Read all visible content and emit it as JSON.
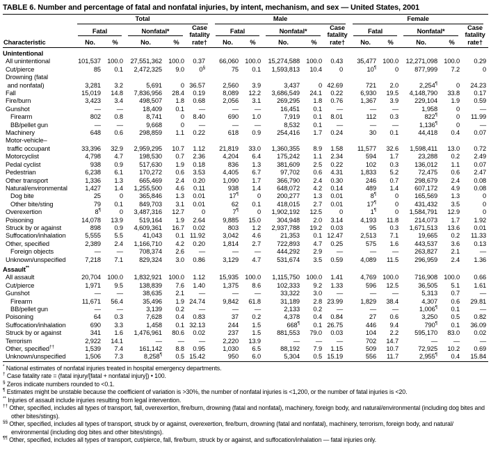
{
  "title": "TABLE 6. Number and percentage of fatal and nonfatal injuries, by intent, mechanism, and sex — United States, 2001",
  "header": {
    "characteristic": "Characteristic",
    "groups": [
      "Total",
      "Male",
      "Female"
    ],
    "fatal": "Fatal",
    "nonfatal": "Nonfatal*",
    "case_fatality": "Case\nfatality\nrate†",
    "no": "No.",
    "pct": "%"
  },
  "sections": [
    {
      "name": "Unintentional",
      "rows": [
        {
          "label": "All unintentional",
          "cells": [
            "101,537",
            "100.0",
            "27,551,362",
            "100.0",
            "0.37",
            "66,060",
            "100.0",
            "15,274,588",
            "100.0",
            "0.43",
            "35,477",
            "100.0",
            "12,271,098",
            "100.0",
            "0.29"
          ]
        },
        {
          "label": "Cut/pierce",
          "cells": [
            "85",
            "0.1",
            "2,472,325",
            "9.0",
            "0§",
            "75",
            "0.1",
            "1,593,813",
            "10.4",
            "0",
            "10¶",
            "0",
            "877,999",
            "7.2",
            "0"
          ]
        },
        {
          "label": "Drowning (fatal\n and nonfatal)",
          "cells": [
            "3,281",
            "3.2",
            "5,691",
            "0",
            "36.57",
            "2,560",
            "3.9",
            "3,437",
            "0",
            "42.69",
            "721",
            "2.0",
            "2,254¶",
            "0",
            "24.23"
          ]
        },
        {
          "label": "Fall",
          "cells": [
            "15,019",
            "14.8",
            "7,836,956",
            "28.4",
            "0.19",
            "8,089",
            "12.2",
            "3,686,549",
            "24.1",
            "0.22",
            "6,930",
            "19.5",
            "4,148,790",
            "33.8",
            "0.17"
          ]
        },
        {
          "label": "Fire/burn",
          "cells": [
            "3,423",
            "3.4",
            "498,507",
            "1.8",
            "0.68",
            "2,056",
            "3.1",
            "269,295",
            "1.8",
            "0.76",
            "1,367",
            "3.9",
            "229,104",
            "1.9",
            "0.59"
          ]
        },
        {
          "label": "Gunshot",
          "cells": [
            "—",
            "—",
            "18,409",
            "0.1",
            "—",
            "—",
            "—",
            "16,451",
            "0.1",
            "—",
            "—",
            "—",
            "1,958",
            "0",
            "—"
          ]
        },
        {
          "label": "Firearm",
          "indent": 2,
          "cells": [
            "802",
            "0.8",
            "8,741",
            "0",
            "8.40",
            "690",
            "1.0",
            "7,919",
            "0.1",
            "8.01",
            "112",
            "0.3",
            "822¶",
            "0",
            "11.99"
          ]
        },
        {
          "label": "BB/pellet gun",
          "indent": 2,
          "cells": [
            "—",
            "—",
            "9,668",
            "0",
            "—",
            "—",
            "—",
            "8,532",
            "0.1",
            "—",
            "—",
            "—",
            "1,136¶",
            "0",
            "—"
          ]
        },
        {
          "label": "Machinery",
          "cells": [
            "648",
            "0.6",
            "298,859",
            "1.1",
            "0.22",
            "618",
            "0.9",
            "254,416",
            "1.7",
            "0.24",
            "30",
            "0.1",
            "44,418",
            "0.4",
            "0.07"
          ]
        },
        {
          "label": "Motor-vehicle–\n traffic occupant",
          "cells": [
            "33,396",
            "32.9",
            "2,959,295",
            "10.7",
            "1.12",
            "21,819",
            "33.0",
            "1,360,355",
            "8.9",
            "1.58",
            "11,577",
            "32.6",
            "1,598,411",
            "13.0",
            "0.72"
          ]
        },
        {
          "label": "Motorcyclist",
          "cells": [
            "4,798",
            "4.7",
            "198,530",
            "0.7",
            "2.36",
            "4,204",
            "6.4",
            "175,242",
            "1.1",
            "2.34",
            "594",
            "1.7",
            "23,288",
            "0.2",
            "2.49"
          ]
        },
        {
          "label": "Pedal cyclist",
          "cells": [
            "938",
            "0.9",
            "517,630",
            "1.9",
            "0.18",
            "836",
            "1.3",
            "381,609",
            "2.5",
            "0.22",
            "102",
            "0.3",
            "136,012",
            "1.1",
            "0.07"
          ]
        },
        {
          "label": "Pedestrian",
          "cells": [
            "6,238",
            "6.1",
            "170,272",
            "0.6",
            "3.53",
            "4,405",
            "6.7",
            "97,702",
            "0.6",
            "4.31",
            "1,833",
            "5.2",
            "72,475",
            "0.6",
            "2.47"
          ]
        },
        {
          "label": "Other transport",
          "cells": [
            "1,336",
            "1.3",
            "665,469",
            "2.4",
            "0.20",
            "1,090",
            "1.7",
            "366,790",
            "2.4",
            "0.30",
            "246",
            "0.7",
            "298,679",
            "2.4",
            "0.08"
          ]
        },
        {
          "label": "Natural/environmental",
          "cells": [
            "1,427",
            "1.4",
            "1,255,500",
            "4.6",
            "0.11",
            "938",
            "1.4",
            "648,072",
            "4.2",
            "0.14",
            "489",
            "1.4",
            "607,172",
            "4.9",
            "0.08"
          ]
        },
        {
          "label": "Dog bite",
          "indent": 2,
          "cells": [
            "25",
            "0",
            "365,846",
            "1.3",
            "0.01",
            "17¶",
            "0",
            "200,277",
            "1.3",
            "0.01",
            "8¶",
            "0",
            "165,569",
            "1.3",
            "0"
          ]
        },
        {
          "label": "Other bite/sting",
          "indent": 2,
          "cells": [
            "79",
            "0.1",
            "849,703",
            "3.1",
            "0.01",
            "62",
            "0.1",
            "418,015",
            "2.7",
            "0.01",
            "17¶",
            "0",
            "431,432",
            "3.5",
            "0"
          ]
        },
        {
          "label": "Overexertion",
          "cells": [
            "8¶",
            "0",
            "3,487,316",
            "12.7",
            "0",
            "7¶",
            "0",
            "1,902,192",
            "12.5",
            "0",
            "1¶",
            "0",
            "1,584,791",
            "12.9",
            "0"
          ]
        },
        {
          "label": "Poisoning",
          "cells": [
            "14,078",
            "13.9",
            "519,164",
            "1.9",
            "2.64",
            "9,885",
            "15.0",
            "304,948",
            "2.0",
            "3.14",
            "4,193",
            "11.8",
            "214,073",
            "1.7",
            "1.92"
          ]
        },
        {
          "label": "Struck by or against",
          "cells": [
            "898",
            "0.9",
            "4,609,361",
            "16.7",
            "0.02",
            "803",
            "1.2",
            "2,937,788",
            "19.2",
            "0.03",
            "95",
            "0.3",
            "1,671,513",
            "13.6",
            "0.01"
          ]
        },
        {
          "label": "Suffocation/inhalation",
          "cells": [
            "5,555",
            "5.5",
            "41,043",
            "0.1",
            "11.92",
            "3,042",
            "4.6",
            "21,353",
            "0.1",
            "12.47",
            "2,513",
            "7.1",
            "19,665",
            "0.2",
            "11.33"
          ]
        },
        {
          "label": "Other, specified",
          "cells": [
            "2,389",
            "2.4",
            "1,166,710",
            "4.2",
            "0.20",
            "1,814",
            "2.7",
            "722,893",
            "4.7",
            "0.25",
            "575",
            "1.6",
            "443,537",
            "3.6",
            "0.13"
          ]
        },
        {
          "label": "Foreign objects",
          "indent": 2,
          "cells": [
            "—",
            "—",
            "708,374",
            "2.6",
            "—",
            "—",
            "—",
            "444,292",
            "2.9",
            "—",
            "—",
            "—",
            "263,827",
            "2.1",
            "—"
          ]
        },
        {
          "label": "Unknown/unspecified",
          "cells": [
            "7,218",
            "7.1",
            "829,324",
            "3.0",
            "0.86",
            "3,129",
            "4.7",
            "531,674",
            "3.5",
            "0.59",
            "4,089",
            "11.5",
            "296,959",
            "2.4",
            "1.36"
          ]
        }
      ]
    },
    {
      "name": "Assault**",
      "rows": [
        {
          "label": "All assault",
          "cells": [
            "20,704",
            "100.0",
            "1,832,921",
            "100.0",
            "1.12",
            "15,935",
            "100.0",
            "1,115,750",
            "100.0",
            "1.41",
            "4,769",
            "100.0",
            "716,908",
            "100.0",
            "0.66"
          ]
        },
        {
          "label": "Cut/pierce",
          "cells": [
            "1,971",
            "9.5",
            "138,839",
            "7.6",
            "1.40",
            "1,375",
            "8.6",
            "102,333",
            "9.2",
            "1.33",
            "596",
            "12.5",
            "36,505",
            "5.1",
            "1.61"
          ]
        },
        {
          "label": "Gunshot",
          "cells": [
            "—",
            "—",
            "38,635",
            "2.1",
            "—",
            "—",
            "—",
            "33,322",
            "3.0",
            "—",
            "—",
            "—",
            "5,313",
            "0.7",
            "—"
          ]
        },
        {
          "label": "Firearm",
          "indent": 2,
          "cells": [
            "11,671",
            "56.4",
            "35,496",
            "1.9",
            "24.74",
            "9,842",
            "61.8",
            "31,189",
            "2.8",
            "23.99",
            "1,829",
            "38.4",
            "4,307",
            "0.6",
            "29.81"
          ]
        },
        {
          "label": "BB/pellet gun",
          "indent": 2,
          "cells": [
            "—",
            "—",
            "3,139",
            "0.2",
            "—",
            "—",
            "—",
            "2,133",
            "0.2",
            "—",
            "—",
            "—",
            "1,006¶",
            "0.1",
            "—"
          ]
        },
        {
          "label": "Poisoning",
          "cells": [
            "64",
            "0.3",
            "7,628",
            "0.4",
            "0.83",
            "37",
            "0.2",
            "4,378",
            "0.4",
            "0.84",
            "27",
            "0.6",
            "3,250",
            "0.5",
            "0.82"
          ]
        },
        {
          "label": "Suffocation/inhalation",
          "cells": [
            "690",
            "3.3",
            "1,458",
            "0.1",
            "32.13",
            "244",
            "1.5",
            "668¶",
            "0.1",
            "26.75",
            "446",
            "9.4",
            "790¶",
            "0.1",
            "36.09"
          ]
        },
        {
          "label": "Struck by or against",
          "cells": [
            "341",
            "1.6",
            "1,476,961",
            "80.6",
            "0.02",
            "237",
            "1.5",
            "881,553",
            "79.0",
            "0.03",
            "104",
            "2.2",
            "595,170",
            "83.0",
            "0.02"
          ]
        },
        {
          "label": "Terrorism",
          "cells": [
            "2,922",
            "14.1",
            "—",
            "—",
            "—",
            "2,220",
            "13.9",
            "—",
            "—",
            "—",
            "702",
            "14.7",
            "—",
            "—",
            "—"
          ]
        },
        {
          "label": "Other, specified††",
          "cells": [
            "1,539",
            "7.4",
            "161,142",
            "8.8",
            "0.95",
            "1,030",
            "6.5",
            "88,192",
            "7.9",
            "1.15",
            "509",
            "10.7",
            "72,925",
            "10.2",
            "0.69"
          ]
        },
        {
          "label": "Unknown/unspecified",
          "cells": [
            "1,506",
            "7.3",
            "8,258¶",
            "0.5",
            "15.42",
            "950",
            "6.0",
            "5,304",
            "0.5",
            "15.19",
            "556",
            "11.7",
            "2,955¶",
            "0.4",
            "15.84"
          ]
        }
      ]
    }
  ],
  "footnotes": [
    {
      "marker": "*",
      "text": "National estimates of nonfatal injuries treated in hospital emergency departments."
    },
    {
      "marker": "†",
      "text": "Case fatality rate = (fatal injury/[fatal + nonfatal injury]) • 100."
    },
    {
      "marker": "§",
      "text": "Zeros indicate numbers rounded to <0.1."
    },
    {
      "marker": "¶",
      "text": "Estimates might be unstable because the coefficient of variation is >30%, the number of nonfatal injuries is <1,200, or the number of fatal injuries is <20."
    },
    {
      "marker": "**",
      "text": "Injuries of assault include injuries resulting from legal intervention."
    },
    {
      "marker": "††",
      "text": "Other, specified, includes all types of transport, fall, overexertion, fire/burn, drowning (fatal and nonfatal), machinery, foreign body, and natural/environmental (including dog bites and other bites/stings)."
    },
    {
      "marker": "§§",
      "text": "Other, specified, includes all types of transport, struck by or against, overexertion, fire/burn, drowning (fatal and nonfatal), machinery, terrorism, foreign body, and natural/ environmental (including dog bites and other bites/stings)."
    },
    {
      "marker": "¶¶",
      "text": "Other, specified, includes all types of transport, cut/pierce, fall, fire/burn, struck by or against, and suffocation/inhalation — fatal injuries only."
    }
  ]
}
